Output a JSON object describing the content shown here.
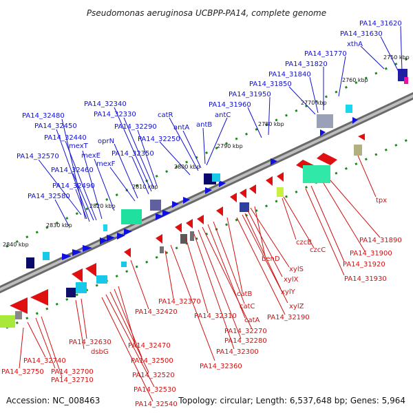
{
  "title": "Pseudomonas aeruginosa UCBPP-PA14, complete genome",
  "footer": {
    "accession": "Accession: NC_008463",
    "summary": "Topology: circular; Length: 6,537,648 bp; Genes: 5,964"
  },
  "kbp_ticks": [
    "2750 kbp",
    "2760 kbp",
    "2770 kbp",
    "2780 kbp",
    "2790 kbp",
    "2800 kbp",
    "2810 kbp",
    "2820 kbp",
    "2830 kbp",
    "2840 kbp"
  ],
  "colors": {
    "backbone": "#8a8a8a",
    "forward_label": "#1010d0",
    "reverse_label": "#d01010",
    "forward_gene": "#1010e0",
    "reverse_gene": "#e01010",
    "tick": "#1a8a1a"
  },
  "forward_labels": [
    "PA14_31620",
    "PA14_31630",
    "xthA",
    "PA14_31770",
    "PA14_31820",
    "PA14_31840",
    "PA14_31850",
    "PA14_31950",
    "PA14_31960",
    "antC",
    "antB",
    "antA",
    "catR",
    "PA14_32250",
    "PA14_32290",
    "PA14_32330",
    "PA14_32340",
    "PA14_32350",
    "oprN",
    "mexF",
    "mexE",
    "mexT",
    "PA14_32440",
    "PA14_32450",
    "PA14_32480",
    "PA14_32460",
    "PA14_32490",
    "PA14_32570",
    "PA14_32580"
  ],
  "reverse_labels": [
    "tpx",
    "PA14_31890",
    "PA14_31900",
    "PA14_31920",
    "PA14_31930",
    "czcB",
    "czcC",
    "benD",
    "xylS",
    "xylX",
    "xylY",
    "xylZ",
    "PA14_32190",
    "catB",
    "catC",
    "catA",
    "PA14_32270",
    "PA14_32280",
    "PA14_32300",
    "PA14_32310",
    "PA14_32360",
    "PA14_32370",
    "PA14_32420",
    "PA14_32470",
    "PA14_32500",
    "PA14_32520",
    "PA14_32530",
    "PA14_32540",
    "dsbG",
    "PA14_32630",
    "PA14_32740",
    "PA14_32700",
    "PA14_32710",
    "PA14_32750"
  ]
}
